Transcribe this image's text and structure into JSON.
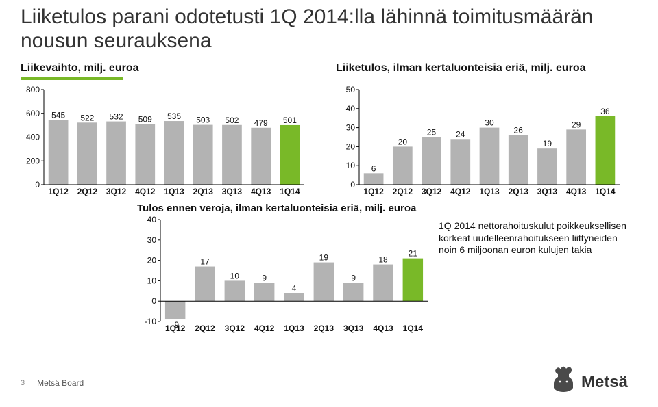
{
  "title": "Liiketulos parani odotetusti 1Q 2014:lla lähinnä toimitusmäärän nousun seurauksena",
  "title_fontsize": 30,
  "title_color": "#333333",
  "underline_color": "#79b928",
  "chart1": {
    "heading": "Liikevaihto, milj. euroa",
    "type": "bar",
    "categories": [
      "1Q12",
      "2Q12",
      "3Q12",
      "4Q12",
      "1Q13",
      "2Q13",
      "3Q13",
      "4Q13",
      "1Q14"
    ],
    "values": [
      545,
      522,
      532,
      509,
      535,
      503,
      502,
      479,
      501
    ],
    "ylim": [
      0,
      800
    ],
    "ytick_step": 200,
    "yticks": [
      0,
      200,
      400,
      600,
      800
    ],
    "bar_color_default": "#b3b3b3",
    "bar_color_highlight": "#79b928",
    "highlight_index": 8,
    "bar_width": 0.68,
    "label_fontsize": 12,
    "tick_fontsize": 12,
    "cat_fontsize": 12,
    "axis_color": "#000000",
    "background": "#ffffff"
  },
  "chart2": {
    "heading": "Liiketulos, ilman kertaluonteisia eriä, milj. euroa",
    "type": "bar",
    "categories": [
      "1Q12",
      "2Q12",
      "3Q12",
      "4Q12",
      "1Q13",
      "2Q13",
      "3Q13",
      "4Q13",
      "1Q14"
    ],
    "values": [
      6,
      20,
      25,
      24,
      30,
      26,
      19,
      29,
      36
    ],
    "ylim": [
      0,
      50
    ],
    "ytick_step": 10,
    "yticks": [
      0,
      10,
      20,
      30,
      40,
      50
    ],
    "bar_color_default": "#b3b3b3",
    "bar_color_highlight": "#79b928",
    "highlight_index": 8,
    "bar_width": 0.68,
    "label_fontsize": 12,
    "tick_fontsize": 12,
    "cat_fontsize": 12,
    "axis_color": "#000000",
    "background": "#ffffff"
  },
  "chart3": {
    "heading": "Tulos ennen veroja, ilman kertaluonteisia eriä, milj. euroa",
    "type": "bar",
    "categories": [
      "1Q12",
      "2Q12",
      "3Q12",
      "4Q12",
      "1Q13",
      "2Q13",
      "3Q13",
      "4Q13",
      "1Q14"
    ],
    "values": [
      -9,
      17,
      10,
      9,
      4,
      19,
      9,
      18,
      21
    ],
    "ylim": [
      -10,
      40
    ],
    "ytick_step": 10,
    "yticks": [
      -10,
      0,
      10,
      20,
      30,
      40
    ],
    "bar_color_default": "#b3b3b3",
    "bar_color_highlight": "#79b928",
    "highlight_index": 8,
    "bar_width": 0.68,
    "label_fontsize": 12,
    "tick_fontsize": 12,
    "cat_fontsize": 12,
    "axis_color": "#000000",
    "background": "#ffffff"
  },
  "note_text": "1Q 2014 nettorahoituskulut poikkeuksellisen korkeat uudelleenrahoitukseen liittyneiden noin 6 miljoonan euron kulujen takia",
  "note_fontsize": 14,
  "footer": {
    "page": "3",
    "brand": "Metsä Board"
  },
  "logo": {
    "brand_text": "Metsä",
    "brand_color": "#333333",
    "mark_color": "#4a4a4a",
    "mark_bg": "#ffffff"
  }
}
